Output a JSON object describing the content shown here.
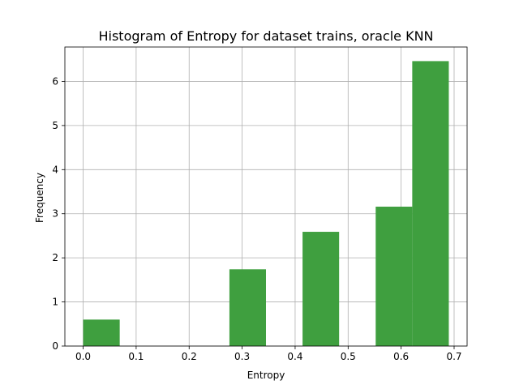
{
  "chart_data": {
    "type": "bar",
    "title": "Histogram of Entropy for dataset trains, oracle KNN",
    "xlabel": "Entropy",
    "ylabel": "Frequency",
    "xlim": [
      -0.0345,
      0.7245
    ],
    "ylim": [
      0,
      6.78
    ],
    "xticks": [
      "0.0",
      "0.1",
      "0.2",
      "0.3",
      "0.4",
      "0.5",
      "0.6",
      "0.7"
    ],
    "yticks": [
      "0",
      "1",
      "2",
      "3",
      "4",
      "5",
      "6"
    ],
    "grid": true,
    "color": "#3f9f3f",
    "bins": [
      {
        "x0": 0.0,
        "x1": 0.069,
        "value": 0.6
      },
      {
        "x0": 0.069,
        "x1": 0.138,
        "value": 0
      },
      {
        "x0": 0.138,
        "x1": 0.207,
        "value": 0
      },
      {
        "x0": 0.207,
        "x1": 0.276,
        "value": 0
      },
      {
        "x0": 0.276,
        "x1": 0.345,
        "value": 1.74
      },
      {
        "x0": 0.345,
        "x1": 0.414,
        "value": 0
      },
      {
        "x0": 0.414,
        "x1": 0.483,
        "value": 2.59
      },
      {
        "x0": 0.483,
        "x1": 0.552,
        "value": 0
      },
      {
        "x0": 0.552,
        "x1": 0.621,
        "value": 3.16
      },
      {
        "x0": 0.621,
        "x1": 0.69,
        "value": 6.46
      }
    ]
  }
}
